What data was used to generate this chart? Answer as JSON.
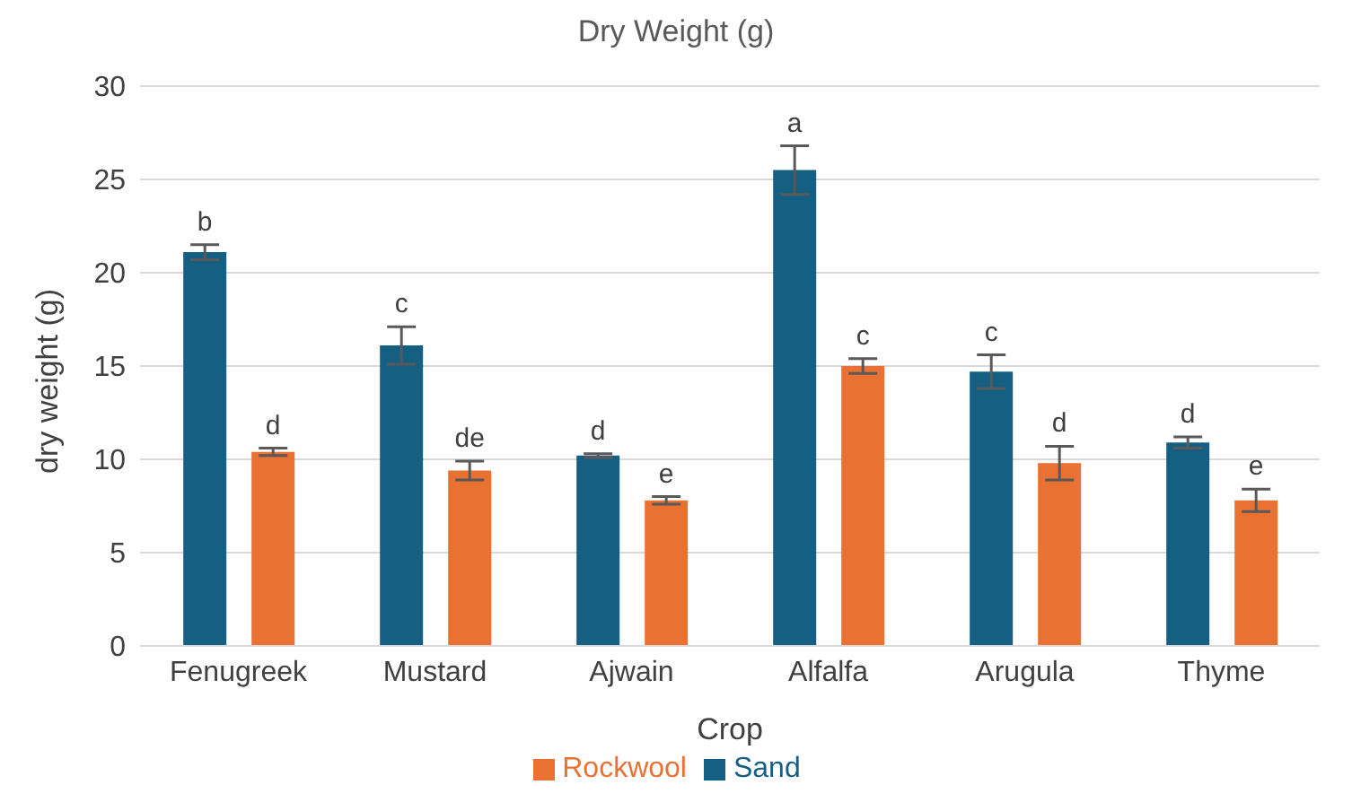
{
  "chart_data": {
    "type": "bar",
    "title": "Dry Weight (g)",
    "xlabel": "Crop",
    "ylabel": "dry weight (g)",
    "categories": [
      "Fenugreek",
      "Mustard",
      "Ajwain",
      "Alfalfa",
      "Arugula",
      "Thyme"
    ],
    "series": [
      {
        "name": "Sand",
        "color": "#156082",
        "values": [
          21.1,
          16.1,
          10.2,
          25.5,
          14.7,
          10.9
        ],
        "errors": [
          0.4,
          1.0,
          0.1,
          1.3,
          0.9,
          0.3
        ],
        "value_labels": [
          "b",
          "c",
          "d",
          "a",
          "c",
          "d"
        ]
      },
      {
        "name": "Rockwool",
        "color": "#e97132",
        "values": [
          10.4,
          9.4,
          7.8,
          15.0,
          9.8,
          7.8
        ],
        "errors": [
          0.2,
          0.5,
          0.2,
          0.4,
          0.9,
          0.6
        ],
        "value_labels": [
          "d",
          "de",
          "e",
          "c",
          "d",
          "e"
        ]
      }
    ],
    "ylim": [
      0,
      30
    ],
    "yticks": [
      0,
      5,
      10,
      15,
      20,
      25,
      30
    ],
    "grid": "y",
    "legend": "bottom"
  }
}
